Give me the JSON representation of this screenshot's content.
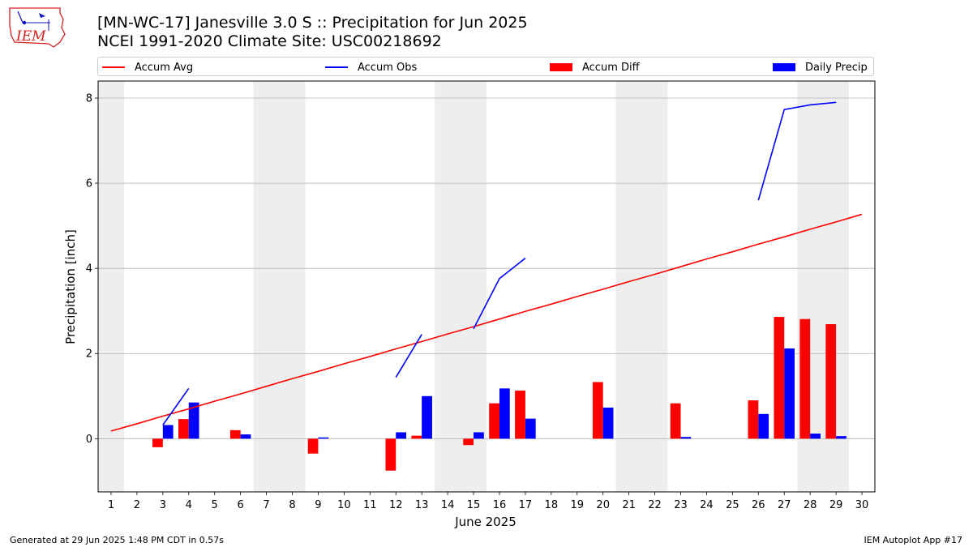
{
  "header": {
    "title_line1": "[MN-WC-17] Janesville 3.0 S :: Precipitation for Jun 2025",
    "title_line2": "NCEI 1991-2020 Climate Site: USC00218692"
  },
  "logo": {
    "text": "IEM",
    "color": "#d62020",
    "accent": "#1010c0"
  },
  "footer": {
    "left": "Generated at 29 Jun 2025 1:48 PM CDT in 0.57s",
    "right": "IEM Autoplot App #17"
  },
  "chart_data": {
    "type": "bar",
    "xlabel": "June 2025",
    "ylabel": "Precipitation [inch]",
    "xlim": [
      0.5,
      30.5
    ],
    "ylim": [
      -1.25,
      8.4
    ],
    "yticks": [
      0,
      2,
      4,
      6,
      8
    ],
    "grid": "horizontal",
    "legend_position": "top",
    "weekend_shading": [
      [
        0.5,
        1.5
      ],
      [
        6.5,
        8.5
      ],
      [
        13.5,
        15.5
      ],
      [
        20.5,
        22.5
      ],
      [
        27.5,
        29.5
      ]
    ],
    "x": [
      1,
      2,
      3,
      4,
      5,
      6,
      7,
      8,
      9,
      10,
      11,
      12,
      13,
      14,
      15,
      16,
      17,
      18,
      19,
      20,
      21,
      22,
      23,
      24,
      25,
      26,
      27,
      28,
      29,
      30
    ],
    "series": [
      {
        "name": "Accum Avg",
        "kind": "line",
        "color": "#ff0000",
        "values": [
          0.18,
          0.35,
          0.53,
          0.7,
          0.88,
          1.05,
          1.23,
          1.41,
          1.58,
          1.76,
          1.93,
          2.11,
          2.28,
          2.46,
          2.63,
          2.81,
          2.99,
          3.16,
          3.34,
          3.51,
          3.69,
          3.86,
          4.04,
          4.22,
          4.39,
          4.57,
          4.74,
          4.92,
          5.09,
          5.27
        ]
      },
      {
        "name": "Accum Obs",
        "kind": "line",
        "color": "#0000ff",
        "values": [
          null,
          null,
          0.32,
          1.18,
          null,
          null,
          null,
          null,
          null,
          null,
          null,
          1.44,
          2.45,
          null,
          2.58,
          3.76,
          4.24,
          null,
          null,
          null,
          null,
          null,
          null,
          null,
          null,
          5.6,
          7.73,
          7.84,
          7.9,
          null
        ]
      },
      {
        "name": "Accum Diff",
        "kind": "bar",
        "color": "#ff0000",
        "values": [
          0,
          0,
          -0.2,
          0.46,
          0,
          0.2,
          0,
          0,
          -0.35,
          0,
          0,
          -0.75,
          0.07,
          0,
          -0.15,
          0.83,
          1.13,
          0,
          0,
          1.33,
          0,
          0,
          0.83,
          0,
          0,
          0.9,
          2.86,
          2.81,
          2.69,
          0
        ]
      },
      {
        "name": "Daily Precip",
        "kind": "bar",
        "color": "#0000ff",
        "values": [
          0,
          0,
          0.32,
          0.85,
          0,
          0.1,
          0,
          0,
          0.03,
          0,
          0,
          0.15,
          1.0,
          0,
          0.15,
          1.18,
          0.47,
          0,
          0,
          0.73,
          0,
          0,
          0.04,
          0,
          0,
          0.58,
          2.12,
          0.12,
          0.06,
          0
        ]
      }
    ]
  }
}
